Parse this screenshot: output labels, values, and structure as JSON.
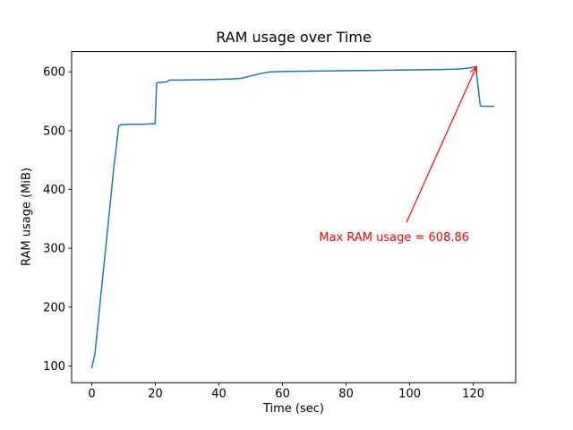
{
  "figure": {
    "background": "#ffffff",
    "text_color": "#000000"
  },
  "chart_data": {
    "type": "line",
    "title": "RAM usage over Time",
    "xlabel": "Time (sec)",
    "ylabel": "RAM usage (MiB)",
    "xlim": [
      -6.35,
      133.35
    ],
    "ylim": [
      71.4,
      634.5
    ],
    "xticks": [
      0,
      20,
      40,
      60,
      80,
      100,
      120
    ],
    "yticks": [
      100,
      200,
      300,
      400,
      500,
      600
    ],
    "grid": false,
    "legend": null,
    "series": [
      {
        "name": "RAM usage",
        "color": "#1f77b4",
        "points": [
          [
            0,
            97
          ],
          [
            1,
            121
          ],
          [
            3,
            228
          ],
          [
            5,
            334
          ],
          [
            7,
            441
          ],
          [
            8.5,
            508
          ],
          [
            9,
            510
          ],
          [
            12,
            511
          ],
          [
            16,
            511
          ],
          [
            19.9,
            512
          ],
          [
            20.4,
            581
          ],
          [
            21,
            582
          ],
          [
            23.5,
            583
          ],
          [
            24.5,
            586
          ],
          [
            27,
            586
          ],
          [
            32,
            586.5
          ],
          [
            38,
            587
          ],
          [
            44,
            588
          ],
          [
            47,
            589
          ],
          [
            50,
            593
          ],
          [
            53,
            597
          ],
          [
            56,
            600
          ],
          [
            60,
            600.5
          ],
          [
            65,
            601
          ],
          [
            72,
            601.5
          ],
          [
            80,
            602
          ],
          [
            88,
            602.5
          ],
          [
            96,
            603
          ],
          [
            104,
            603.5
          ],
          [
            110,
            604
          ],
          [
            114,
            604.5
          ],
          [
            117,
            605.5
          ],
          [
            119,
            607
          ],
          [
            120.8,
            608.86
          ],
          [
            122.2,
            543
          ],
          [
            122.6,
            541.5
          ],
          [
            126.5,
            541.5
          ]
        ]
      }
    ],
    "annotation": {
      "label": "Max RAM usage = 608.86",
      "color": "#ff0000",
      "xy": [
        121,
        608.86
      ],
      "text_pos": [
        71.5,
        310
      ],
      "arrow_start": [
        99,
        344
      ]
    },
    "max_value": 608.86
  }
}
